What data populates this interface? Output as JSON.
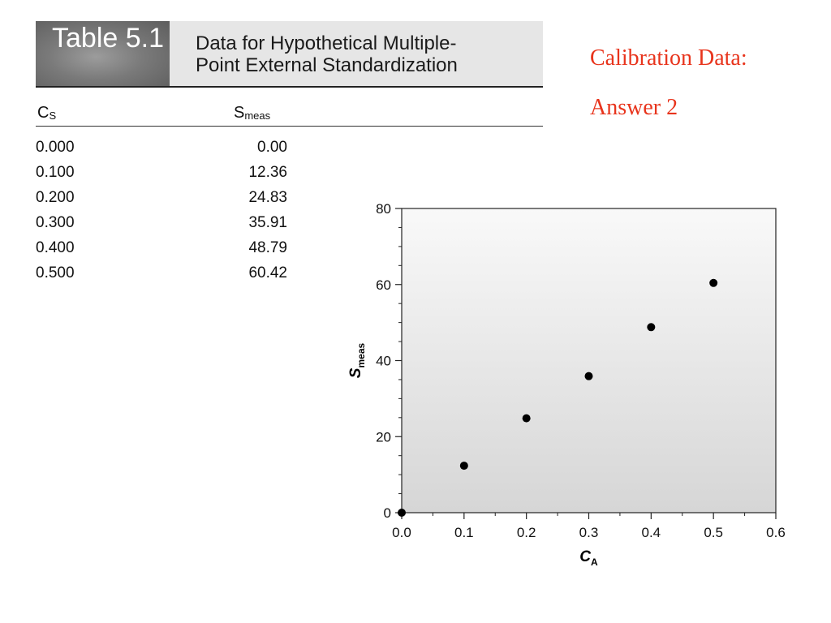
{
  "table": {
    "badge": "Table 5.1",
    "title_line1": "Data for Hypothetical Multiple-",
    "title_line2": "Point External Standardization",
    "col1_main": "C",
    "col1_sub": "S",
    "col2_main": "S",
    "col2_sub": "meas",
    "rows": [
      {
        "cs": "0.000",
        "smeas": "0.00"
      },
      {
        "cs": "0.100",
        "smeas": "12.36"
      },
      {
        "cs": "0.200",
        "smeas": "24.83"
      },
      {
        "cs": "0.300",
        "smeas": "35.91"
      },
      {
        "cs": "0.400",
        "smeas": "48.79"
      },
      {
        "cs": "0.500",
        "smeas": "60.42"
      }
    ]
  },
  "side": {
    "line1": "Calibration Data:",
    "line2": "Answer 2"
  },
  "chart_data": {
    "type": "scatter",
    "x": [
      0.0,
      0.1,
      0.2,
      0.3,
      0.4,
      0.5
    ],
    "y": [
      0.0,
      12.36,
      24.83,
      35.91,
      48.79,
      60.42
    ],
    "xlabel_main": "C",
    "xlabel_sub": "A",
    "ylabel_main": "S",
    "ylabel_sub": "meas",
    "xlim": [
      0,
      0.6
    ],
    "ylim": [
      0,
      80
    ],
    "xticks": [
      "0.0",
      "0.1",
      "0.2",
      "0.3",
      "0.4",
      "0.5",
      "0.6"
    ],
    "yticks": [
      "0",
      "20",
      "40",
      "60",
      "80"
    ],
    "grid": false
  }
}
